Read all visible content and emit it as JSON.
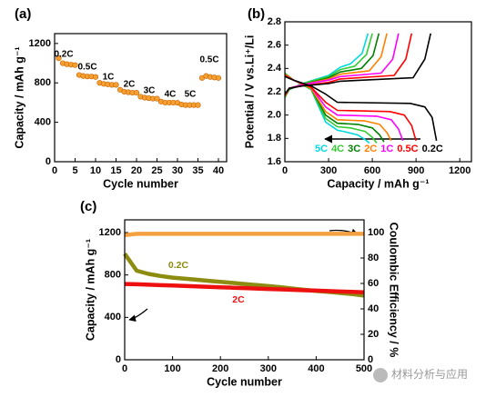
{
  "chart_data": [
    {
      "type": "scatter",
      "panel_label": "(a)",
      "xlabel": "Cycle number",
      "ylabel": "Capacity / mAh g⁻¹",
      "x": [
        1,
        2,
        3,
        4,
        5,
        6,
        7,
        8,
        9,
        10,
        11,
        12,
        13,
        14,
        15,
        16,
        17,
        18,
        19,
        20,
        21,
        22,
        23,
        24,
        25,
        26,
        27,
        28,
        29,
        30,
        31,
        32,
        33,
        34,
        35,
        36,
        37,
        38,
        39,
        40
      ],
      "values": [
        1050,
        1000,
        990,
        985,
        980,
        880,
        870,
        865,
        865,
        860,
        800,
        790,
        785,
        780,
        780,
        730,
        710,
        705,
        700,
        700,
        660,
        650,
        645,
        640,
        640,
        610,
        600,
        600,
        600,
        598,
        580,
        575,
        575,
        575,
        575,
        850,
        870,
        860,
        855,
        850
      ],
      "color": "#f5a030",
      "annotations": [
        "0.2C",
        "0.5C",
        "1C",
        "2C",
        "3C",
        "4C",
        "5C",
        "0.5C"
      ],
      "xlim": [
        0,
        42
      ],
      "xticks": [
        0,
        5,
        10,
        15,
        20,
        25,
        30,
        35,
        40
      ],
      "ylim": [
        0,
        1300
      ],
      "yticks": [
        0,
        400,
        800,
        1200
      ]
    },
    {
      "type": "line",
      "panel_label": "(b)",
      "xlabel": "Capacity / mAh g⁻¹",
      "ylabel": "Potential / V vs.Li⁺/Li",
      "series": [
        {
          "name": "5C",
          "color": "#00d8e0",
          "x": [
            0,
            60,
            180,
            280,
            360,
            400,
            500,
            550,
            580,
            null,
            0,
            30,
            120,
            300,
            380,
            450,
            530,
            570
          ],
          "values": [
            2.36,
            2.3,
            2.22,
            1.94,
            1.87,
            1.86,
            1.83,
            1.79,
            1.76,
            null,
            2.15,
            2.22,
            2.27,
            2.34,
            2.41,
            2.44,
            2.53,
            2.7
          ]
        },
        {
          "name": "4C",
          "color": "#33cc33",
          "x": [
            0,
            60,
            180,
            280,
            360,
            450,
            550,
            600,
            630,
            null,
            0,
            30,
            120,
            300,
            380,
            480,
            560,
            600
          ],
          "values": [
            2.36,
            2.3,
            2.22,
            1.97,
            1.9,
            1.89,
            1.86,
            1.81,
            1.76,
            null,
            2.15,
            2.22,
            2.27,
            2.33,
            2.39,
            2.42,
            2.52,
            2.7
          ]
        },
        {
          "name": "3C",
          "color": "#008000",
          "x": [
            0,
            60,
            180,
            280,
            360,
            500,
            600,
            650,
            680,
            null,
            0,
            30,
            120,
            300,
            380,
            525,
            605,
            645
          ],
          "values": [
            2.35,
            2.3,
            2.23,
            2.0,
            1.93,
            1.92,
            1.89,
            1.83,
            1.77,
            null,
            2.16,
            2.22,
            2.26,
            2.32,
            2.37,
            2.4,
            2.51,
            2.7
          ]
        },
        {
          "name": "2C",
          "color": "#ff8000",
          "x": [
            0,
            60,
            180,
            280,
            360,
            550,
            650,
            700,
            730,
            null,
            0,
            30,
            120,
            300,
            380,
            580,
            660,
            700
          ],
          "values": [
            2.35,
            2.3,
            2.23,
            2.03,
            1.96,
            1.95,
            1.92,
            1.85,
            1.78,
            null,
            2.16,
            2.23,
            2.26,
            2.31,
            2.35,
            2.38,
            2.5,
            2.7
          ]
        },
        {
          "name": "1C",
          "color": "#ff00ff",
          "x": [
            0,
            60,
            180,
            280,
            360,
            630,
            730,
            780,
            810,
            null,
            0,
            30,
            120,
            300,
            380,
            660,
            740,
            780
          ],
          "values": [
            2.34,
            2.3,
            2.24,
            2.07,
            2.0,
            1.99,
            1.96,
            1.88,
            1.78,
            null,
            2.17,
            2.23,
            2.26,
            2.3,
            2.33,
            2.36,
            2.48,
            2.7
          ]
        },
        {
          "name": "0.5C",
          "color": "#ff0000",
          "x": [
            0,
            60,
            180,
            280,
            360,
            720,
            820,
            870,
            900,
            null,
            0,
            30,
            120,
            300,
            380,
            750,
            830,
            870
          ],
          "values": [
            2.34,
            2.3,
            2.24,
            2.11,
            2.04,
            2.03,
            2.0,
            1.91,
            1.78,
            null,
            2.17,
            2.23,
            2.25,
            2.28,
            2.31,
            2.34,
            2.48,
            2.7
          ]
        },
        {
          "name": "0.2C",
          "color": "#000000",
          "x": [
            0,
            60,
            180,
            280,
            360,
            860,
            960,
            1010,
            1040,
            null,
            0,
            30,
            120,
            300,
            380,
            880,
            960,
            1000
          ],
          "values": [
            2.33,
            2.3,
            2.25,
            2.18,
            2.11,
            2.1,
            2.07,
            1.98,
            1.78,
            null,
            2.18,
            2.23,
            2.25,
            2.27,
            2.29,
            2.32,
            2.48,
            2.7
          ]
        }
      ],
      "xlim": [
        0,
        1280
      ],
      "xticks": [
        0,
        300,
        600,
        900,
        1200
      ],
      "ylim": [
        1.6,
        2.8
      ],
      "yticks": [
        1.6,
        1.8,
        {
          "value": 2,
          "label": "2.0"
        },
        2.2,
        2.4,
        2.6,
        2.8
      ]
    },
    {
      "type": "line",
      "panel_label": "(c)",
      "xlabel": "Cycle number",
      "ylabel": "Capacity / mAh g⁻¹",
      "y2label": "Coulombic Efficiency / %",
      "x": [
        0,
        25,
        50,
        75,
        100,
        125,
        150,
        175,
        200,
        225,
        250,
        275,
        300,
        325,
        350,
        375,
        400,
        425,
        450,
        475,
        500
      ],
      "series": [
        {
          "name": "0.2C",
          "color": "#8c8c10",
          "values": [
            1000,
            840,
            810,
            790,
            775,
            765,
            755,
            745,
            735,
            725,
            715,
            705,
            695,
            685,
            672,
            660,
            650,
            640,
            630,
            620,
            605
          ]
        },
        {
          "name": "2C",
          "color": "#ee1010",
          "values": [
            715,
            712,
            708,
            704,
            700,
            696,
            692,
            688,
            684,
            680,
            676,
            672,
            668,
            664,
            660,
            656,
            652,
            648,
            644,
            640,
            636
          ]
        },
        {
          "color": "#f5a040",
          "axis": "y2",
          "values": [
            98,
            99,
            99,
            99,
            99,
            99,
            99,
            99,
            99,
            99,
            99,
            99,
            99,
            99,
            99,
            99,
            99,
            99,
            99,
            99,
            99
          ]
        }
      ],
      "xlim": [
        0,
        500
      ],
      "xticks": [
        0,
        100,
        200,
        300,
        400,
        500
      ],
      "ylim": [
        0,
        1320
      ],
      "yticks": [
        0,
        400,
        800,
        1200
      ],
      "y2lim": [
        0,
        110
      ],
      "y2ticks": [
        0,
        20,
        40,
        60,
        80,
        100
      ]
    }
  ],
  "watermark": "材料分析与应用"
}
